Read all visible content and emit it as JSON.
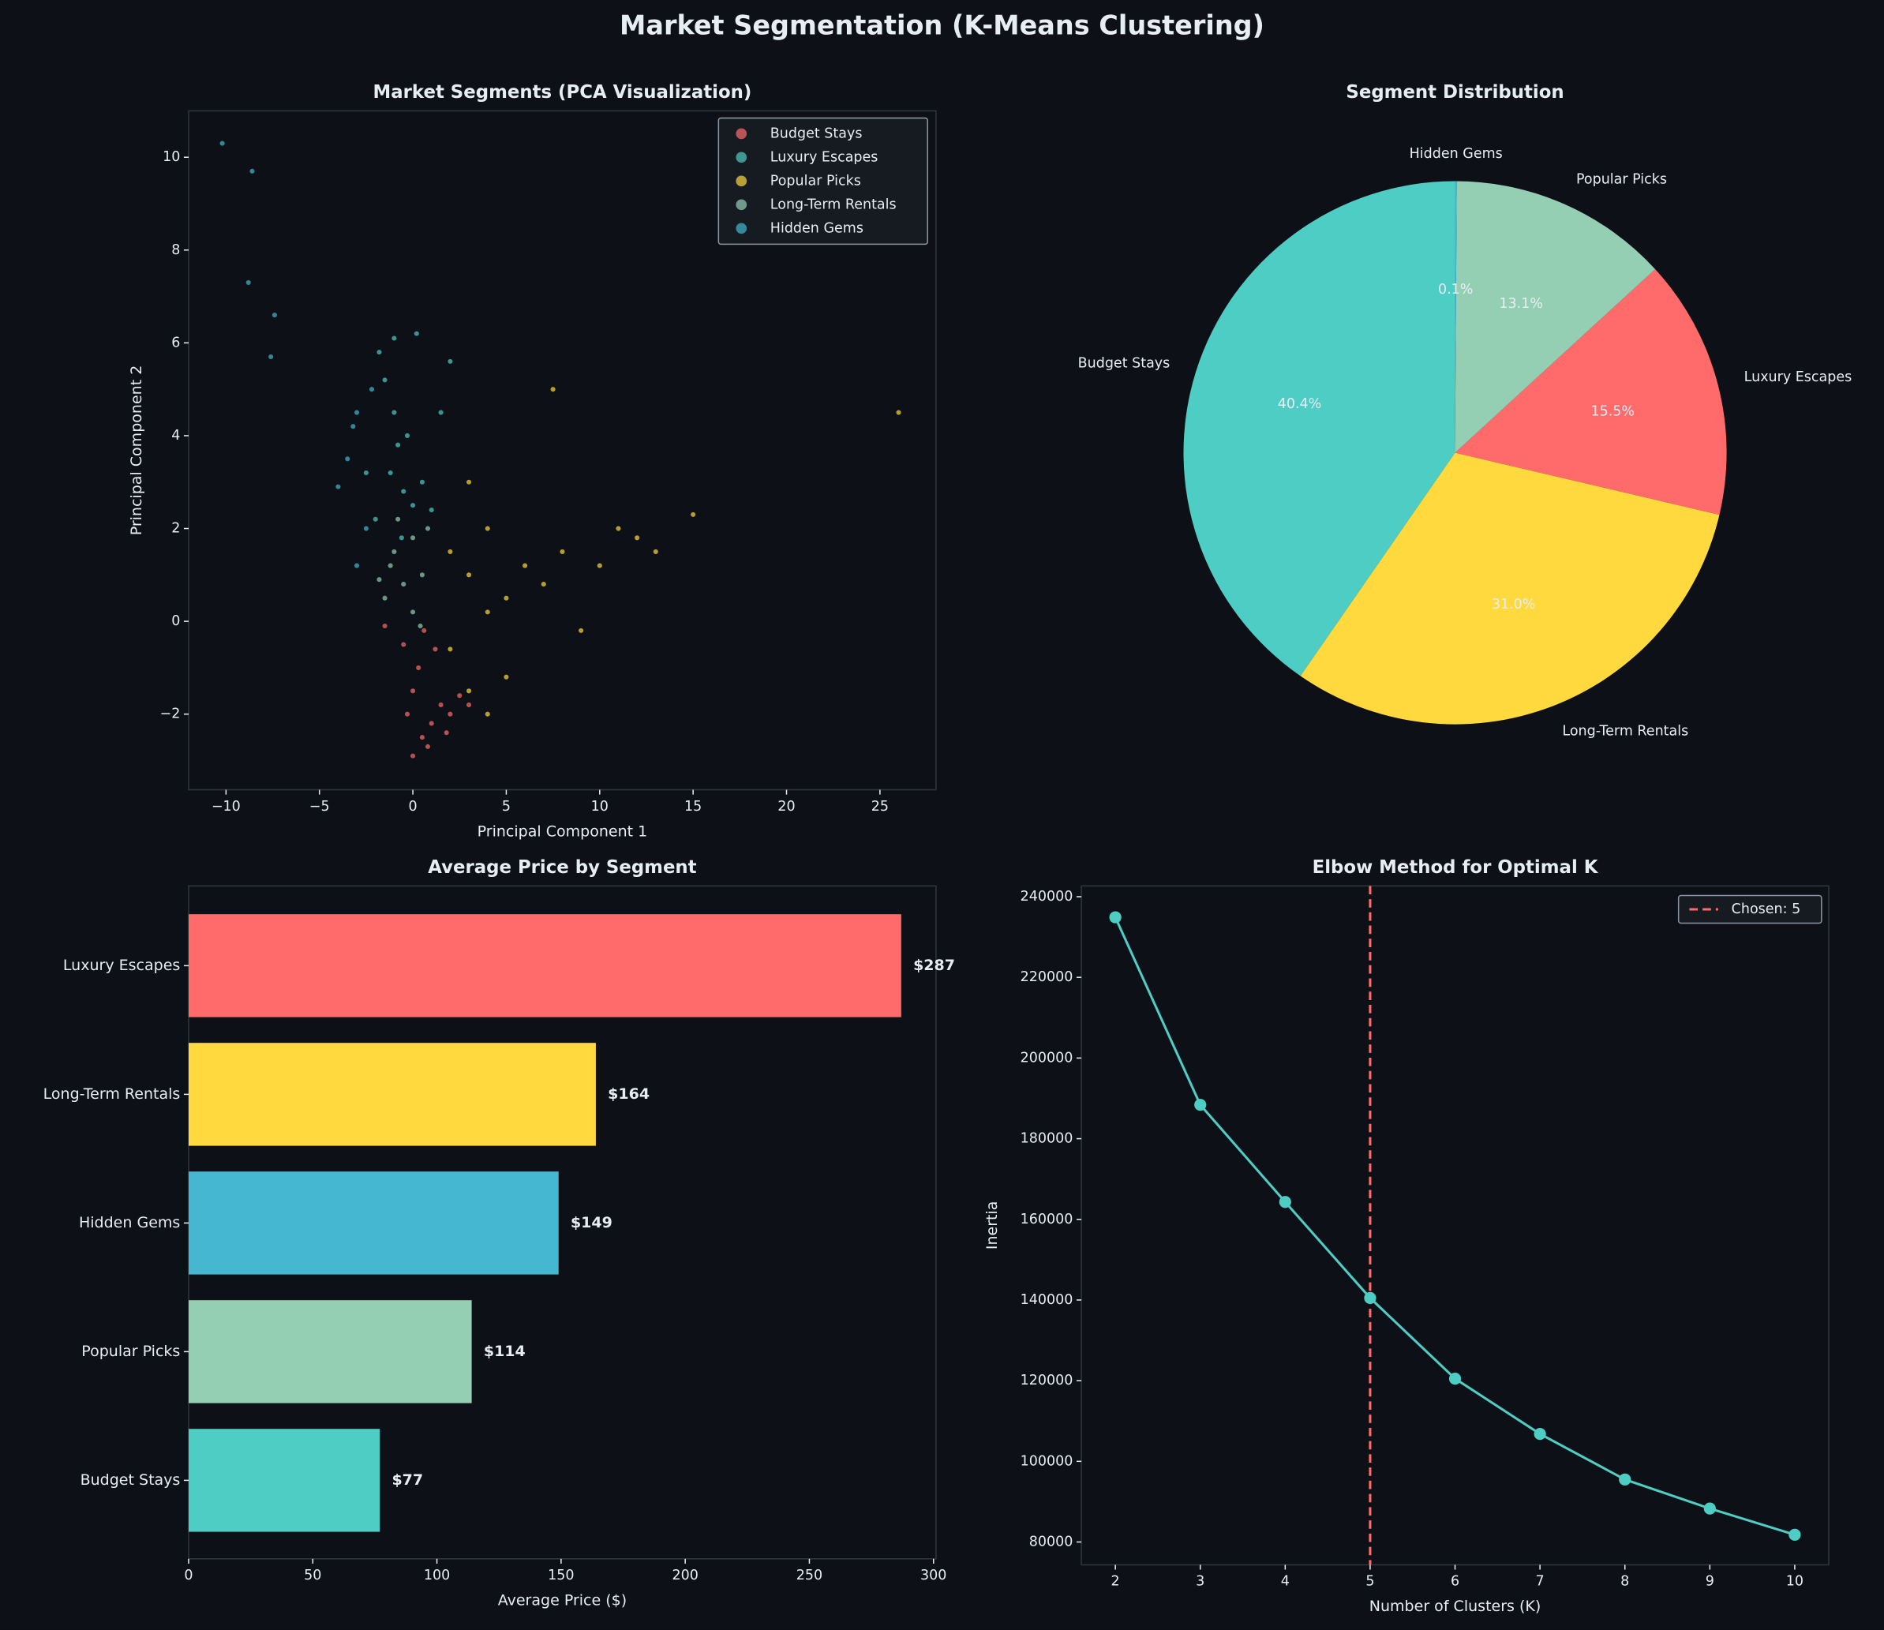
{
  "title": "Market Segmentation (K-Means Clustering)",
  "chart_data": [
    {
      "type": "scatter",
      "title": "Market Segments (PCA Visualization)",
      "xlabel": "Principal Component 1",
      "ylabel": "Principal Component 2",
      "xlim": [
        -12,
        28
      ],
      "ylim": [
        -3.63,
        11.0
      ],
      "xticks": [
        {
          "value": -10,
          "label": "−10"
        },
        {
          "value": -5,
          "label": "−5"
        },
        0,
        5,
        10,
        15,
        20,
        25
      ],
      "yticks": [
        {
          "value": -2,
          "label": "−2"
        },
        0,
        2,
        4,
        6,
        8,
        10
      ],
      "legend": "upper right",
      "series": [
        {
          "name": "Budget Stays",
          "color": "#ff6b6b",
          "x": [
            0,
            0.5,
            1,
            1.5,
            2,
            2.5,
            0,
            -0.5,
            0.3,
            1.2,
            -1.5,
            0.8,
            1.8,
            3,
            -0.3,
            0.6
          ],
          "y": [
            -2.9,
            -2.5,
            -2.2,
            -1.8,
            -2.0,
            -1.6,
            -1.5,
            -0.5,
            -1.0,
            -0.6,
            -0.1,
            -2.7,
            -2.4,
            -1.8,
            -2.0,
            -0.2
          ]
        },
        {
          "name": "Luxury Escapes",
          "color": "#4ecdc4",
          "x": [
            -1,
            -1.5,
            -0.8,
            -0.5,
            0,
            -1.2,
            -0.3,
            0.5,
            1,
            -2.5,
            -1.8,
            0.2,
            1.5,
            -2,
            -0.6,
            2,
            -1
          ],
          "y": [
            4.5,
            5.2,
            3.8,
            2.8,
            2.5,
            3.2,
            4.0,
            3.0,
            2.4,
            3.2,
            5.8,
            6.2,
            4.5,
            2.2,
            1.8,
            5.6,
            6.1
          ]
        },
        {
          "name": "Popular Picks",
          "color": "#ffd93d",
          "x": [
            2,
            3,
            4,
            5,
            6,
            3,
            4,
            7,
            8,
            10,
            12,
            15,
            7.5,
            26,
            3,
            4,
            5,
            2,
            9,
            11,
            13
          ],
          "y": [
            1.5,
            1.0,
            2.0,
            0.5,
            1.2,
            3.0,
            0.2,
            0.8,
            1.5,
            1.2,
            1.8,
            2.3,
            5.0,
            4.5,
            -1.5,
            -2.0,
            -1.2,
            -0.6,
            -0.2,
            2.0,
            1.5
          ]
        },
        {
          "name": "Long-Term Rentals",
          "color": "#95cfb3",
          "x": [
            -1,
            -0.5,
            0,
            0.5,
            -1.5,
            0,
            0.8,
            -0.8,
            0.4,
            -1.2,
            -1.8
          ],
          "y": [
            1.5,
            0.8,
            0.2,
            1.0,
            0.5,
            1.8,
            2.0,
            2.2,
            -0.1,
            1.2,
            0.9
          ]
        },
        {
          "name": "Hidden Gems",
          "color": "#45b7d1",
          "x": [
            -10.2,
            -8.6,
            -8.8,
            -7.4,
            -7.6,
            -3,
            -3.5,
            -4,
            -2.5,
            -3,
            -2.2,
            -3.2
          ],
          "y": [
            10.3,
            9.7,
            7.3,
            6.6,
            5.7,
            4.5,
            3.5,
            2.9,
            2.0,
            1.2,
            5.0,
            4.2
          ]
        }
      ]
    },
    {
      "type": "pie",
      "title": "Segment Distribution",
      "categories": [
        "Budget Stays",
        "Long-Term Rentals",
        "Luxury Escapes",
        "Popular Picks",
        "Hidden Gems"
      ],
      "values": [
        40.4,
        31.0,
        15.5,
        13.1,
        0.1
      ],
      "value_labels": [
        "40.4%",
        "31.0%",
        "15.5%",
        "13.1%",
        "0.1%"
      ],
      "colors": [
        "#4ecdc4",
        "#ffd93d",
        "#ff6b6b",
        "#95cfb3",
        "#45b7d1"
      ]
    },
    {
      "type": "barh",
      "title": "Average Price by Segment",
      "xlabel": "Average Price ($)",
      "categories": [
        "Luxury Escapes",
        "Long-Term Rentals",
        "Hidden Gems",
        "Popular Picks",
        "Budget Stays"
      ],
      "values": [
        287,
        164,
        149,
        114,
        77
      ],
      "value_labels": [
        "$287",
        "$164",
        "$149",
        "$114",
        "$77"
      ],
      "colors": [
        "#ff6b6b",
        "#ffd93d",
        "#45b7d1",
        "#95cfb3",
        "#4ecdc4"
      ],
      "xlim": [
        0,
        301
      ],
      "xticks": [
        0,
        50,
        100,
        150,
        200,
        250,
        300
      ]
    },
    {
      "type": "line",
      "title": "Elbow Method for Optimal K",
      "xlabel": "Number of Clusters (K)",
      "ylabel": "Inertia",
      "x": [
        2,
        3,
        4,
        5,
        6,
        7,
        8,
        9,
        10
      ],
      "values": [
        234900,
        188400,
        164300,
        140500,
        120500,
        106800,
        95500,
        88300,
        81800
      ],
      "color": "#4ecdc4",
      "xlim": [
        1.6,
        10.4
      ],
      "ylim": [
        74340,
        242680
      ],
      "xticks": [
        2,
        3,
        4,
        5,
        6,
        7,
        8,
        9,
        10
      ],
      "yticks": [
        80000,
        100000,
        120000,
        140000,
        160000,
        180000,
        200000,
        220000,
        240000
      ],
      "vline": {
        "x": 5,
        "label": "Chosen: 5",
        "color": "#ff6b6b"
      },
      "legend": "upper right"
    }
  ]
}
